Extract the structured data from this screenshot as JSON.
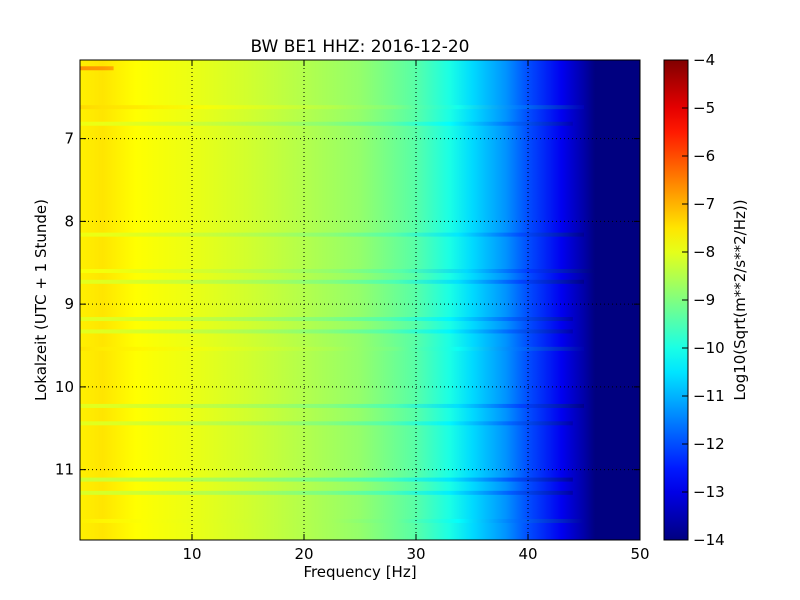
{
  "chart_data": {
    "type": "heatmap",
    "title": "BW BE1 HHZ: 2016-12-20",
    "xlabel": "Frequency [Hz]",
    "ylabel": "Lokalzeit (UTC + 1 Stunde)",
    "colorbar_label": "Log10(Sqrt(m**2/s**2/Hz))",
    "colormap": "jet",
    "xlim": [
      0,
      50
    ],
    "ylim": [
      11.85,
      6.05
    ],
    "y_inverted": true,
    "xticks": [
      10,
      20,
      30,
      40,
      50
    ],
    "xtick_labels": [
      "10",
      "20",
      "30",
      "40",
      "50"
    ],
    "yticks": [
      7,
      8,
      9,
      10,
      11
    ],
    "ytick_labels": [
      "7",
      "8",
      "9",
      "10",
      "11"
    ],
    "grid": true,
    "grid_style": "dotted",
    "clim": [
      -14,
      -4
    ],
    "cbar_ticks": [
      -4,
      -5,
      -6,
      -7,
      -8,
      -9,
      -10,
      -11,
      -12,
      -13,
      -14
    ],
    "cbar_tick_labels": [
      "−4",
      "−5",
      "−6",
      "−7",
      "−8",
      "−9",
      "−10",
      "−11",
      "−12",
      "−13",
      "−14"
    ],
    "background_spectrum": {
      "frequency_hz": [
        0,
        2,
        5,
        10,
        15,
        20,
        25,
        30,
        33,
        35,
        38,
        40,
        43,
        45,
        46,
        50
      ],
      "log10_amplitude": [
        -7.6,
        -7.5,
        -7.75,
        -7.95,
        -8.2,
        -8.5,
        -8.8,
        -9.4,
        -10.0,
        -10.6,
        -11.3,
        -12.0,
        -12.9,
        -13.6,
        -14.0,
        -14.0
      ]
    },
    "bands": [
      {
        "time": 6.15,
        "freq_end_hz": 3,
        "log10_amplitude": -6.7
      },
      {
        "time": 6.62,
        "freq_end_hz": 45,
        "log10_amplitude": -7.4
      },
      {
        "time": 6.82,
        "freq_end_hz": 44,
        "log10_amplitude": -7.9
      },
      {
        "time": 8.16,
        "freq_end_hz": 45,
        "log10_amplitude": -7.9
      },
      {
        "time": 8.6,
        "freq_end_hz": 46,
        "log10_amplitude": -7.8
      },
      {
        "time": 8.73,
        "freq_end_hz": 45,
        "log10_amplitude": -8.0
      },
      {
        "time": 9.18,
        "freq_end_hz": 44,
        "log10_amplitude": -8.0
      },
      {
        "time": 9.33,
        "freq_end_hz": 44,
        "log10_amplitude": -8.0
      },
      {
        "time": 9.54,
        "freq_end_hz": 45,
        "log10_amplitude": -7.5
      },
      {
        "time": 10.23,
        "freq_end_hz": 45,
        "log10_amplitude": -8.0
      },
      {
        "time": 10.44,
        "freq_end_hz": 44,
        "log10_amplitude": -8.0
      },
      {
        "time": 11.12,
        "freq_end_hz": 44,
        "log10_amplitude": -8.2
      },
      {
        "time": 11.28,
        "freq_end_hz": 44,
        "log10_amplitude": -8.1
      },
      {
        "time": 11.62,
        "freq_end_hz": 45,
        "log10_amplitude": -7.6
      }
    ]
  }
}
